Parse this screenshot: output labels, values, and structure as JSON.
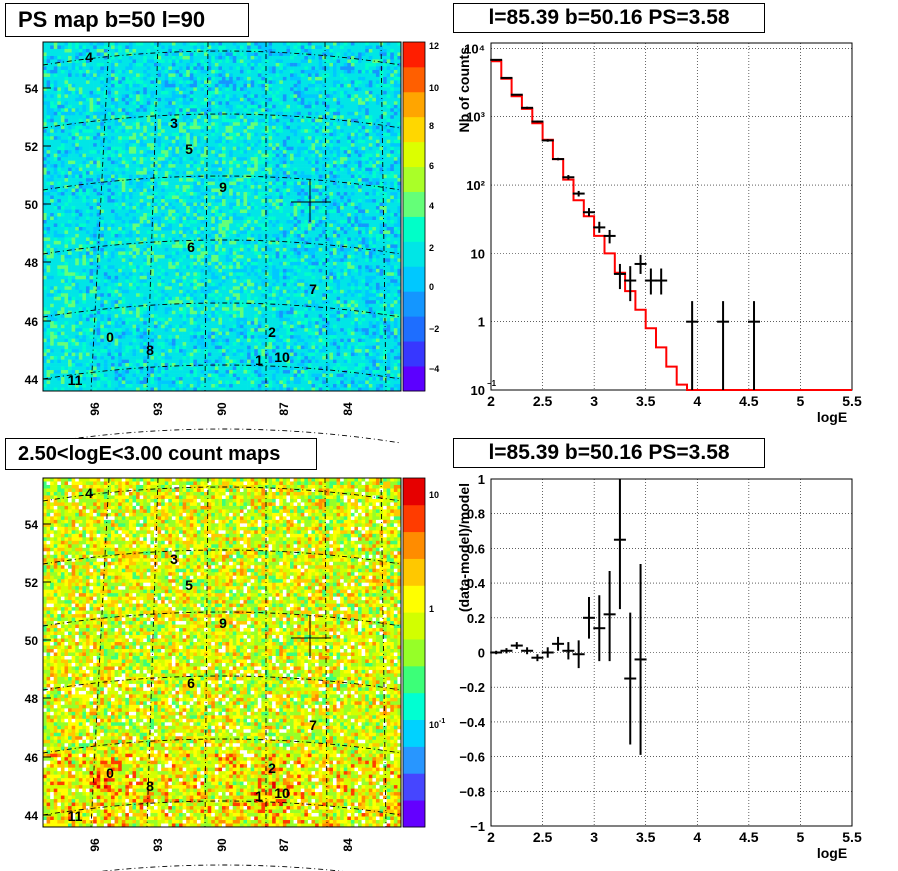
{
  "panels": {
    "tl_title": "PS map b=50 l=90",
    "tr_title": "l=85.39 b=50.16 PS=3.58",
    "bl_title": "2.50<logE<3.00 count maps",
    "br_title": "l=85.39 b=50.16 PS=3.58"
  },
  "maps": {
    "y_ticks": [
      "44",
      "46",
      "48",
      "50",
      "52",
      "54"
    ],
    "x_ticks": [
      "96",
      "93",
      "90",
      "87",
      "84"
    ],
    "sources": [
      "4",
      "3",
      "5",
      "9",
      "6",
      "7",
      "2",
      "0",
      "8",
      "1",
      "10",
      "11"
    ],
    "ps_colorbar_ticks": [
      "12",
      "10",
      "8",
      "6",
      "4",
      "2",
      "0",
      "−2",
      "−4"
    ],
    "count_colorbar_ticks": [
      "10",
      "1",
      "10"
    ],
    "count_colorbar_exp": [
      "",
      "",
      "-1"
    ]
  },
  "chart_data": [
    {
      "type": "line",
      "title": "l=85.39 b=50.16 PS=3.58",
      "xlabel": "logE",
      "ylabel": "Nb of counts",
      "log_y": true,
      "xlim": [
        2,
        5.5
      ],
      "ylim": [
        0.1,
        12000
      ],
      "grid": true,
      "x_ticks": [
        "2",
        "2.5",
        "3",
        "3.5",
        "4",
        "4.5",
        "5",
        "5.5"
      ],
      "y_ticks": [
        "10",
        "1",
        "10",
        "10²",
        "10³",
        "10⁴"
      ],
      "series": [
        {
          "kind": "model_histogram",
          "color": "#ff0000",
          "bin_edges": [
            2.0,
            2.1,
            2.2,
            2.3,
            2.4,
            2.5,
            2.6,
            2.7,
            2.8,
            2.9,
            3.0,
            3.1,
            3.2,
            3.3,
            3.4,
            3.5,
            3.6,
            3.7,
            3.8,
            3.9,
            4.0,
            4.1,
            4.2,
            4.3,
            4.4,
            4.5,
            4.6,
            4.7,
            4.8,
            4.9,
            5.0,
            5.1,
            5.2,
            5.3,
            5.4,
            5.5
          ],
          "values": [
            6500,
            3600,
            2000,
            1300,
            800,
            460,
            240,
            120,
            60,
            35,
            18,
            10,
            5.2,
            2.8,
            1.5,
            0.8,
            0.42,
            0.22,
            0.12,
            0.1,
            0.1,
            0.1,
            0.1,
            0.1,
            0.1,
            0.1,
            0.1,
            0.1,
            0.1,
            0.1,
            0.1,
            0.1,
            0.1,
            0.1,
            0.1
          ]
        },
        {
          "kind": "data_points",
          "color": "#000000",
          "x": [
            2.05,
            2.15,
            2.25,
            2.35,
            2.45,
            2.55,
            2.65,
            2.75,
            2.85,
            2.95,
            3.05,
            3.15,
            3.25,
            3.35,
            3.45,
            3.55,
            3.65,
            3.95,
            4.25,
            4.55
          ],
          "y": [
            6800,
            3700,
            2100,
            1350,
            850,
            450,
            240,
            130,
            75,
            40,
            24,
            18,
            5,
            4,
            7,
            4,
            4,
            1,
            1,
            1
          ],
          "y_lo": [
            6600,
            3600,
            2050,
            1300,
            820,
            430,
            230,
            120,
            68,
            35,
            20,
            14,
            3,
            2,
            5,
            2.5,
            2.5,
            0.1,
            0.1,
            0.1
          ],
          "y_hi": [
            7000,
            3800,
            2150,
            1400,
            880,
            470,
            250,
            140,
            82,
            46,
            29,
            22,
            7,
            6.5,
            9.5,
            6,
            6,
            2,
            2,
            2
          ]
        }
      ]
    },
    {
      "type": "scatter",
      "title": "l=85.39 b=50.16 PS=3.58",
      "xlabel": "logE",
      "ylabel": "(data-model)/model",
      "xlim": [
        2,
        5.5
      ],
      "ylim": [
        -1,
        1
      ],
      "grid": true,
      "x_ticks": [
        "2",
        "2.5",
        "3",
        "3.5",
        "4",
        "4.5",
        "5",
        "5.5"
      ],
      "y_ticks": [
        "1",
        "0.8",
        "0.6",
        "0.4",
        "0.2",
        "0",
        "−0.2",
        "−0.4",
        "−0.6",
        "−0.8",
        "−1"
      ],
      "series": [
        {
          "kind": "data_points",
          "color": "#000000",
          "x": [
            2.05,
            2.15,
            2.25,
            2.35,
            2.45,
            2.55,
            2.65,
            2.75,
            2.85,
            2.95,
            3.05,
            3.15,
            3.25,
            3.35,
            3.45
          ],
          "y": [
            0.0,
            0.01,
            0.04,
            0.01,
            -0.03,
            0.0,
            0.05,
            0.01,
            -0.01,
            0.2,
            0.14,
            0.22,
            0.65,
            -0.15,
            -0.04
          ],
          "y_lo": [
            -0.01,
            -0.005,
            0.02,
            -0.01,
            -0.05,
            -0.03,
            0.01,
            -0.04,
            -0.09,
            0.08,
            -0.05,
            -0.05,
            0.25,
            -0.53,
            -0.59
          ],
          "y_hi": [
            0.01,
            0.025,
            0.06,
            0.03,
            -0.01,
            0.03,
            0.09,
            0.06,
            0.07,
            0.32,
            0.33,
            0.47,
            1.0,
            0.23,
            0.51
          ]
        }
      ]
    }
  ]
}
